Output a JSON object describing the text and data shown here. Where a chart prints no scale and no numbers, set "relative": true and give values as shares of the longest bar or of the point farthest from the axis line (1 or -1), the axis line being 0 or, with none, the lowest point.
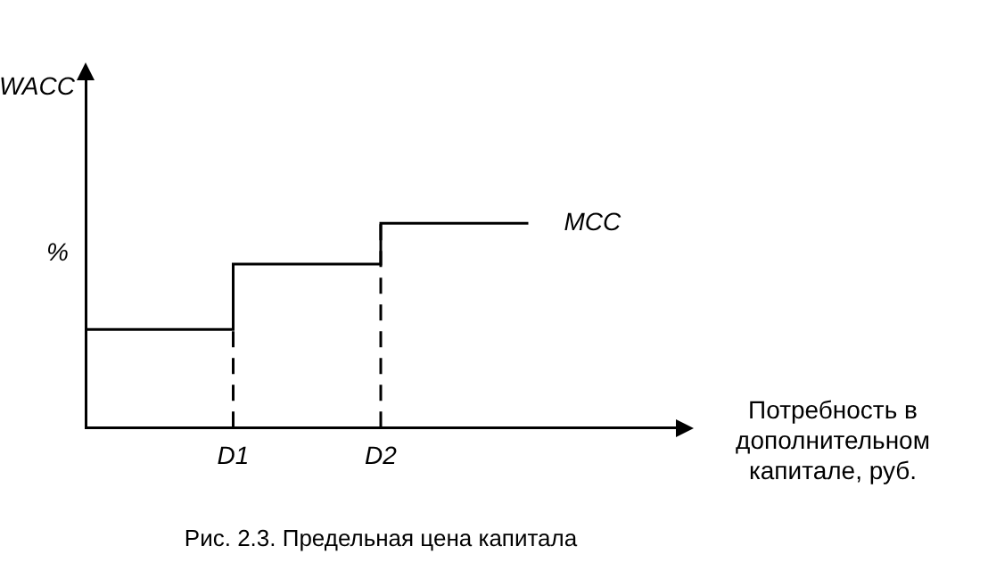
{
  "chart_data": {
    "type": "step",
    "title": "Рис. 2.3. Предельная цена капитала",
    "xlabel": "Потребность в дополнительном капитале, руб.",
    "ylabel": "WACC",
    "relative": true,
    "categories": [
      null,
      "D1",
      "D2",
      null,
      null
    ],
    "series": [
      {
        "name": "MCC",
        "color": "#000000",
        "values": [
          0.48,
          0.8,
          1,
          1,
          null
        ]
      }
    ],
    "ref_lines": [
      {
        "axis": "x",
        "value": "D1",
        "line_style": "dashed"
      },
      {
        "axis": "x",
        "value": "D2",
        "line_style": "dashed"
      }
    ],
    "annotations": [
      "%"
    ],
    "grid": false,
    "legend": false
  }
}
